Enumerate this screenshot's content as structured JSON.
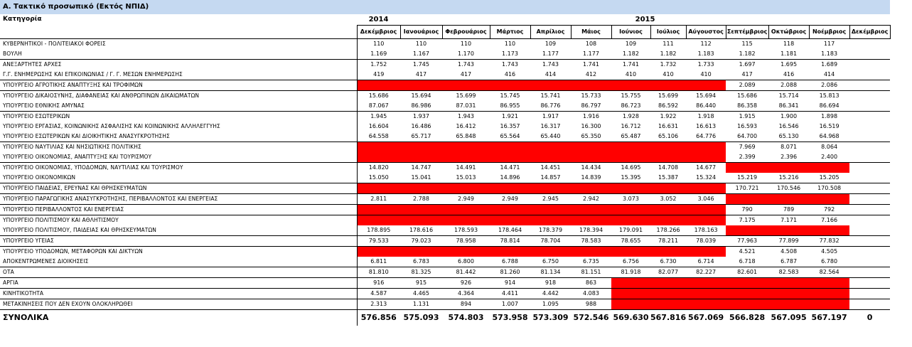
{
  "title": "Α. Τακτικό προσωπικό (Εκτός ΝΠΙΔ)",
  "category_header": "Κατηγορία",
  "year_2014": "2014",
  "year_2015": "2015",
  "months": [
    "Δεκέμβριος",
    "Ιανουάριος",
    "Φεβρουάριος",
    "Μάρτιος",
    "Απρίλιος",
    "Μάιος",
    "Ιούνιος",
    "Ιούλιος",
    "Αύγουστος",
    "Σεπτέμβριος",
    "Οκτώβριος",
    "Νοέμβριος",
    "Δεκέμβριος"
  ],
  "colors": {
    "header_band": "#c5d9f1",
    "missing_fill": "#ff0000"
  },
  "groups": [
    {
      "rows": [
        {
          "label": "ΚΥΒΕΡΝΗΤΙΚΟΙ - ΠΟΛΙΤΕΙΑΚΟΙ ΦΟΡΕΙΣ",
          "values": [
            "110",
            "110",
            "110",
            "110",
            "109",
            "108",
            "109",
            "111",
            "112",
            "115",
            "118",
            "117",
            ""
          ]
        },
        {
          "label": "ΒΟΥΛΗ",
          "values": [
            "1.169",
            "1.167",
            "1.170",
            "1.173",
            "1.177",
            "1.177",
            "1.182",
            "1.182",
            "1.183",
            "1.182",
            "1.181",
            "1.183",
            ""
          ]
        }
      ]
    },
    {
      "rows": [
        {
          "label": "ΑΝΕΞΑΡΤΗΤΕΣ ΑΡΧΕΣ",
          "values": [
            "1.752",
            "1.745",
            "1.743",
            "1.743",
            "1.743",
            "1.741",
            "1.741",
            "1.732",
            "1.733",
            "1.697",
            "1.695",
            "1.689",
            ""
          ]
        },
        {
          "label": "Γ.Γ. ΕΝΗΜΕΡΩΣΗΣ ΚΑΙ ΕΠΙΚΟΙΝΩΝΙΑΣ / Γ. Γ. ΜΕΣΩΝ ΕΝΗΜΕΡΩΣΗΣ",
          "values": [
            "419",
            "417",
            "417",
            "416",
            "414",
            "412",
            "410",
            "410",
            "410",
            "417",
            "416",
            "414",
            ""
          ]
        }
      ]
    },
    {
      "rows": [
        {
          "label": "ΥΠΟΥΡΓΕΙΟ ΑΓΡΟΤΙΚΗΣ ΑΝΑΠΤΥΞΗΣ ΚΑΙ ΤΡΟΦΙΜΩΝ",
          "values": [
            null,
            null,
            null,
            null,
            null,
            null,
            null,
            null,
            null,
            "2.089",
            "2.088",
            "2.086",
            ""
          ]
        }
      ]
    },
    {
      "rows": [
        {
          "label": "ΥΠΟΥΡΓΕΙΟ ΔΙΚΑΙΟΣΥΝΗΣ, ΔΙΑΦΑΝΕΙΑΣ ΚΑΙ ΑΝΘΡΩΠΙΝΩΝ ΔΙΚΑΙΩΜΑΤΩΝ",
          "values": [
            "15.686",
            "15.694",
            "15.699",
            "15.745",
            "15.741",
            "15.733",
            "15.755",
            "15.699",
            "15.694",
            "15.686",
            "15.714",
            "15.813",
            ""
          ]
        },
        {
          "label": "ΥΠΟΥΡΓΕΙΟ ΕΘΝΙΚΗΣ ΑΜΥΝΑΣ",
          "values": [
            "87.067",
            "86.986",
            "87.031",
            "86.955",
            "86.776",
            "86.797",
            "86.723",
            "86.592",
            "86.440",
            "86.358",
            "86.341",
            "86.694",
            ""
          ]
        }
      ]
    },
    {
      "rows": [
        {
          "label": "ΥΠΟΥΡΓΕΙΟ ΕΣΩΤΕΡΙΚΩΝ",
          "values": [
            "1.945",
            "1.937",
            "1.943",
            "1.921",
            "1.917",
            "1.916",
            "1.928",
            "1.922",
            "1.918",
            "1.915",
            "1.900",
            "1.898",
            ""
          ]
        },
        {
          "label": "ΥΠΟΥΡΓΕΙΟ ΕΡΓΑΣΙΑΣ, ΚΟΙΝΩΝΙΚΗΣ ΑΣΦΑΛΙΣΗΣ ΚΑΙ ΚΟΙΝΩΝΙΚΗΣ ΑΛΛΗΛΕΓΓΥΗΣ",
          "values": [
            "16.604",
            "16.486",
            "16.412",
            "16.357",
            "16.317",
            "16.300",
            "16.712",
            "16.631",
            "16.613",
            "16.593",
            "16.546",
            "16.519",
            ""
          ]
        },
        {
          "label": "ΥΠΟΥΡΓΕΙΟ ΕΣΩΤΕΡΙΚΩΝ ΚΑΙ ΔΙΟΙΚΗΤΙΚΗΣ ΑΝΑΣΥΓΚΡΟΤΗΣΗΣ",
          "values": [
            "64.558",
            "65.717",
            "65.848",
            "65.564",
            "65.440",
            "65.350",
            "65.487",
            "65.106",
            "64.776",
            "64.700",
            "65.130",
            "64.968",
            ""
          ]
        }
      ]
    },
    {
      "rows": [
        {
          "label": "ΥΠΟΥΡΓΕΙΟ ΝΑΥΤΙΛΙΑΣ ΚΑΙ ΝΗΣΙΩΤΙΚΗΣ ΠΟΛΙΤΙΚΗΣ",
          "values": [
            null,
            null,
            null,
            null,
            null,
            null,
            null,
            null,
            null,
            "7.969",
            "8.071",
            "8.064",
            ""
          ]
        },
        {
          "label": "ΥΠΟΥΡΓΕΙΟ ΟΙΚΟΝΟΜΙΑΣ, ΑΝΑΠΤΥΞΗΣ ΚΑΙ ΤΟΥΡΙΣΜΟΥ",
          "values": [
            null,
            null,
            null,
            null,
            null,
            null,
            null,
            null,
            null,
            "2.399",
            "2.396",
            "2.400",
            ""
          ]
        }
      ]
    },
    {
      "rows": [
        {
          "label": "ΥΠΟΥΡΓΕΙΟ ΟΙΚΟΝΟΜΙΑΣ, ΥΠΟΔΟΜΩΝ, ΝΑΥΤΙΛΙΑΣ ΚΑΙ ΤΟΥΡΙΣΜΟΥ",
          "values": [
            "14.820",
            "14.747",
            "14.491",
            "14.471",
            "14.451",
            "14.434",
            "14.695",
            "14.708",
            "14.677",
            null,
            null,
            null,
            ""
          ]
        },
        {
          "label": "ΥΠΟΥΡΓΕΙΟ ΟΙΚΟΝΟΜΙΚΩΝ",
          "values": [
            "15.050",
            "15.041",
            "15.013",
            "14.896",
            "14.857",
            "14.839",
            "15.395",
            "15.387",
            "15.324",
            "15.219",
            "15.216",
            "15.205",
            ""
          ]
        }
      ]
    },
    {
      "rows": [
        {
          "label": "ΥΠΟΥΡΓΕΙΟ ΠΑΙΔΕΙΑΣ, ΕΡΕΥΝΑΣ ΚΑΙ ΘΡΗΣΚΕΥΜΑΤΩΝ",
          "values": [
            null,
            null,
            null,
            null,
            null,
            null,
            null,
            null,
            null,
            "170.721",
            "170.546",
            "170.508",
            ""
          ]
        }
      ]
    },
    {
      "rows": [
        {
          "label": "ΥΠΟΥΡΓΕΙΟ ΠΑΡΑΓΩΓΙΚΗΣ ΑΝΑΣΥΓΚΡΟΤΗΣΗΣ, ΠΕΡΙΒΑΛΛΟΝΤΟΣ ΚΑΙ ΕΝΕΡΓΕΙΑΣ",
          "values": [
            "2.811",
            "2.788",
            "2.949",
            "2.949",
            "2.945",
            "2.942",
            "3.073",
            "3.052",
            "3.046",
            null,
            null,
            null,
            ""
          ]
        }
      ]
    },
    {
      "rows": [
        {
          "label": "ΥΠΟΥΡΓΕΙΟ ΠΕΡΙΒΑΛΛΟΝΤΟΣ ΚΑΙ ΕΝΕΡΓΕΙΑΣ",
          "values": [
            null,
            null,
            null,
            null,
            null,
            null,
            null,
            null,
            null,
            "790",
            "789",
            "792",
            ""
          ]
        }
      ]
    },
    {
      "rows": [
        {
          "label": "ΥΠΟΥΡΓΕΙΟ ΠΟΛΙΤΙΣΜΟΥ ΚΑΙ ΑΘΛΗΤΙΣΜΟΥ",
          "values": [
            null,
            null,
            null,
            null,
            null,
            null,
            null,
            null,
            null,
            "7.175",
            "7.171",
            "7.166",
            ""
          ]
        },
        {
          "label": "ΥΠΟΥΡΓΕΙΟ ΠΟΛΙΤΙΣΜΟΥ, ΠΑΙΔΕΙΑΣ ΚΑΙ ΘΡΗΣΚΕΥΜΑΤΩΝ",
          "values": [
            "178.895",
            "178.616",
            "178.593",
            "178.464",
            "178.379",
            "178.394",
            "179.091",
            "178.266",
            "178.163",
            null,
            null,
            null,
            ""
          ]
        }
      ]
    },
    {
      "rows": [
        {
          "label": "ΥΠΟΥΡΓΕΙΟ ΥΓΕΙΑΣ",
          "values": [
            "79.533",
            "79.023",
            "78.958",
            "78.814",
            "78.704",
            "78.583",
            "78.655",
            "78.211",
            "78.039",
            "77.963",
            "77.899",
            "77.832",
            ""
          ]
        }
      ]
    },
    {
      "rows": [
        {
          "label": "ΥΠΟΥΡΓΕΙΟ ΥΠΟΔΟΜΩΝ, ΜΕΤΑΦΟΡΩΝ ΚΑΙ ΔΙΚΤΥΩΝ",
          "values": [
            null,
            null,
            null,
            null,
            null,
            null,
            null,
            null,
            null,
            "4.521",
            "4.508",
            "4.505",
            ""
          ]
        },
        {
          "label": "ΑΠΟΚΕΝΤΡΩΜΕΝΕΣ ΔΙΟΙΚΗΣΕΙΣ",
          "values": [
            "6.811",
            "6.783",
            "6.800",
            "6.788",
            "6.750",
            "6.735",
            "6.756",
            "6.730",
            "6.714",
            "6.718",
            "6.787",
            "6.780",
            ""
          ]
        }
      ]
    },
    {
      "rows": [
        {
          "label": "ΟΤΑ",
          "values": [
            "81.810",
            "81.325",
            "81.442",
            "81.260",
            "81.134",
            "81.151",
            "81.918",
            "82.077",
            "82.227",
            "82.601",
            "82.583",
            "82.564",
            ""
          ]
        }
      ]
    },
    {
      "rows": [
        {
          "label": "ΑΡΓΙΑ",
          "values": [
            "916",
            "915",
            "926",
            "914",
            "918",
            "863",
            null,
            null,
            null,
            null,
            null,
            null,
            ""
          ]
        }
      ]
    },
    {
      "rows": [
        {
          "label": "ΚΙΝΗΤΙΚΟΤΗΤΑ",
          "values": [
            "4.587",
            "4.465",
            "4.364",
            "4.411",
            "4.442",
            "4.083",
            null,
            null,
            null,
            null,
            null,
            null,
            ""
          ]
        }
      ]
    },
    {
      "rows": [
        {
          "label": "ΜΕΤΑΚΙΝΗΣΕΙΣ ΠΟΥ ΔΕΝ ΕΧΟΥΝ ΟΛΟΚΛΗΡΩΘΕΙ",
          "values": [
            "2.313",
            "1.131",
            "894",
            "1.007",
            "1.095",
            "988",
            null,
            null,
            null,
            null,
            null,
            null,
            ""
          ]
        }
      ]
    }
  ],
  "totals": {
    "label": "ΣΥΝΟΛΙΚΑ",
    "values": [
      "576.856",
      "575.093",
      "574.803",
      "573.958",
      "573.309",
      "572.546",
      "569.630",
      "567.816",
      "567.069",
      "566.828",
      "567.095",
      "567.197",
      "0"
    ]
  }
}
